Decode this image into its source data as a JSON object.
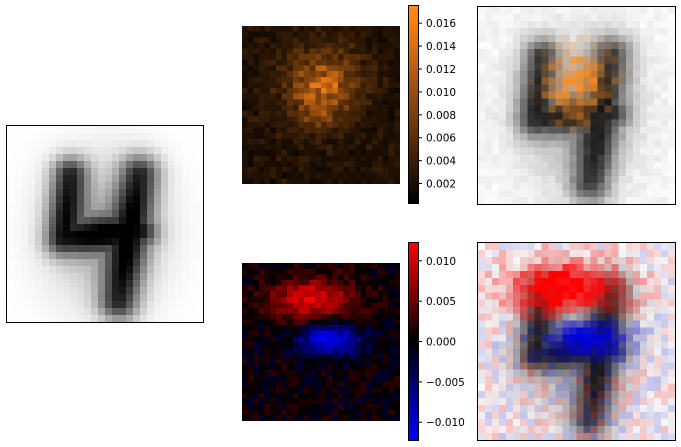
{
  "chart_data": [
    {
      "type": "heatmap",
      "panel": "mean-digit-image",
      "grid": [
        28,
        28
      ],
      "colormap": "gray_r",
      "title": "",
      "xlabel": "",
      "ylabel": "",
      "axes_frame": true,
      "ticks": false,
      "description_of_content": "average handwritten digit 4"
    },
    {
      "type": "heatmap",
      "panel": "orange-attribution-map",
      "grid": [
        28,
        28
      ],
      "colormap": "black-to-orange",
      "colorbar": {
        "vmin": 0.0003,
        "vmax": 0.0175,
        "ticks": [
          "0.002",
          "0.004",
          "0.006",
          "0.008",
          "0.010",
          "0.012",
          "0.014",
          "0.016"
        ]
      }
    },
    {
      "type": "heatmap",
      "panel": "orange-overlay",
      "grid": [
        28,
        28
      ],
      "colormap": "orange-over-gray"
    },
    {
      "type": "heatmap",
      "panel": "diverging-attribution-map",
      "grid": [
        28,
        28
      ],
      "colormap": "blue-black-red",
      "colorbar": {
        "vmin": -0.0122,
        "vmax": 0.0122,
        "ticks": [
          "0.010",
          "0.005",
          "0.000",
          "−0.005",
          "−0.010"
        ]
      }
    },
    {
      "type": "heatmap",
      "panel": "diverging-overlay",
      "grid": [
        28,
        28
      ],
      "colormap": "red-blue-over-gray"
    }
  ],
  "colors": {
    "orange": "#ff8c1a",
    "red": "#ff0000",
    "blue": "#0000ff",
    "black": "#000000"
  }
}
